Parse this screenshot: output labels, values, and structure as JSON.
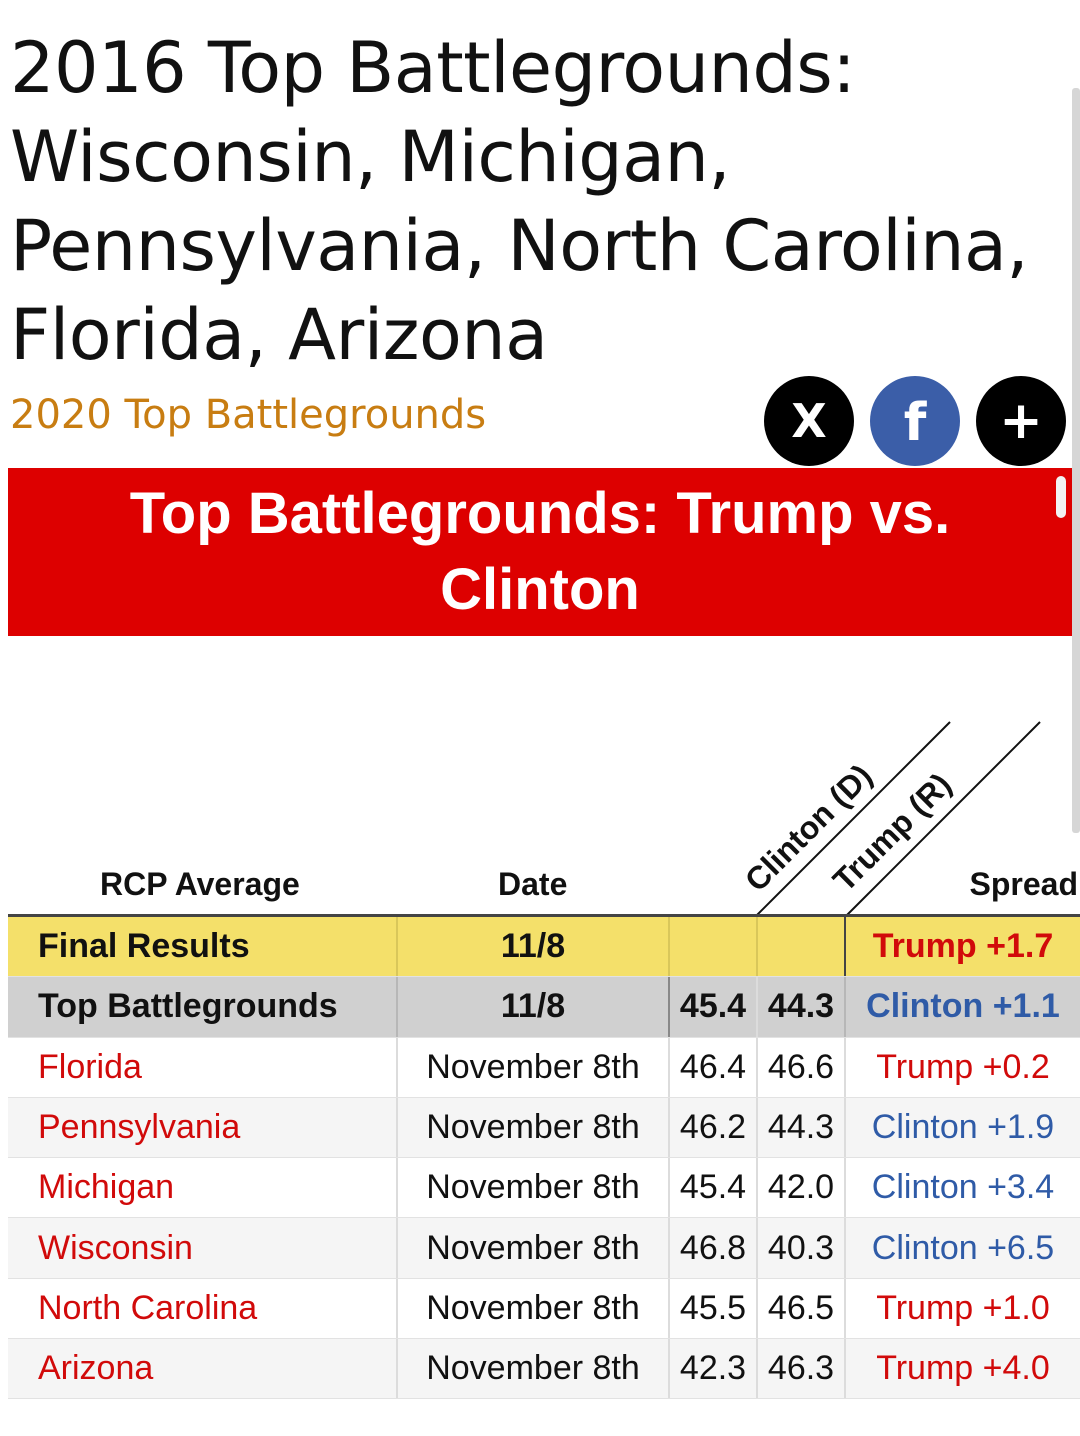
{
  "page": {
    "title_lines": [
      "2016 Top Battlegrounds:",
      "Wisconsin, Michigan,",
      "Pennsylvania, North Carolina,",
      "Florida, Arizona"
    ],
    "sub_link": "2020 Top Battlegrounds"
  },
  "share": {
    "x_icon": "X",
    "facebook_icon": "f",
    "more_icon": "+"
  },
  "banner": {
    "title": "Top Battlegrounds: Trump vs. Clinton"
  },
  "table": {
    "headers": {
      "rcp": "RCP Average",
      "date": "Date",
      "clinton": "Clinton (D)",
      "trump": "Trump (R)",
      "spread": "Spread"
    },
    "final": {
      "label": "Final Results",
      "date": "11/8",
      "clinton": "",
      "trump": "",
      "spread": "Trump +1.7"
    },
    "average": {
      "label": "Top Battlegrounds",
      "date": "11/8",
      "clinton": "45.4",
      "trump": "44.3",
      "spread": "Clinton +1.1"
    },
    "rows": [
      {
        "state": "Florida",
        "date": "November 8th",
        "clinton": "46.4",
        "trump": "46.6",
        "spread": "Trump +0.2"
      },
      {
        "state": "Pennsylvania",
        "date": "November 8th",
        "clinton": "46.2",
        "trump": "44.3",
        "spread": "Clinton +1.9"
      },
      {
        "state": "Michigan",
        "date": "November 8th",
        "clinton": "45.4",
        "trump": "42.0",
        "spread": "Clinton +3.4"
      },
      {
        "state": "Wisconsin",
        "date": "November 8th",
        "clinton": "46.8",
        "trump": "40.3",
        "spread": "Clinton +6.5"
      },
      {
        "state": "North Carolina",
        "date": "November 8th",
        "clinton": "45.5",
        "trump": "46.5",
        "spread": "Trump +1.0"
      },
      {
        "state": "Arizona",
        "date": "November 8th",
        "clinton": "42.3",
        "trump": "46.3",
        "spread": "Trump +4.0"
      }
    ]
  },
  "colors": {
    "banner": "#dd0000",
    "link": "#c87d12",
    "trump": "#d10a0a",
    "clinton": "#2f5ba7",
    "final_row": "#f4e06a",
    "avg_row": "#d0d0d0"
  }
}
